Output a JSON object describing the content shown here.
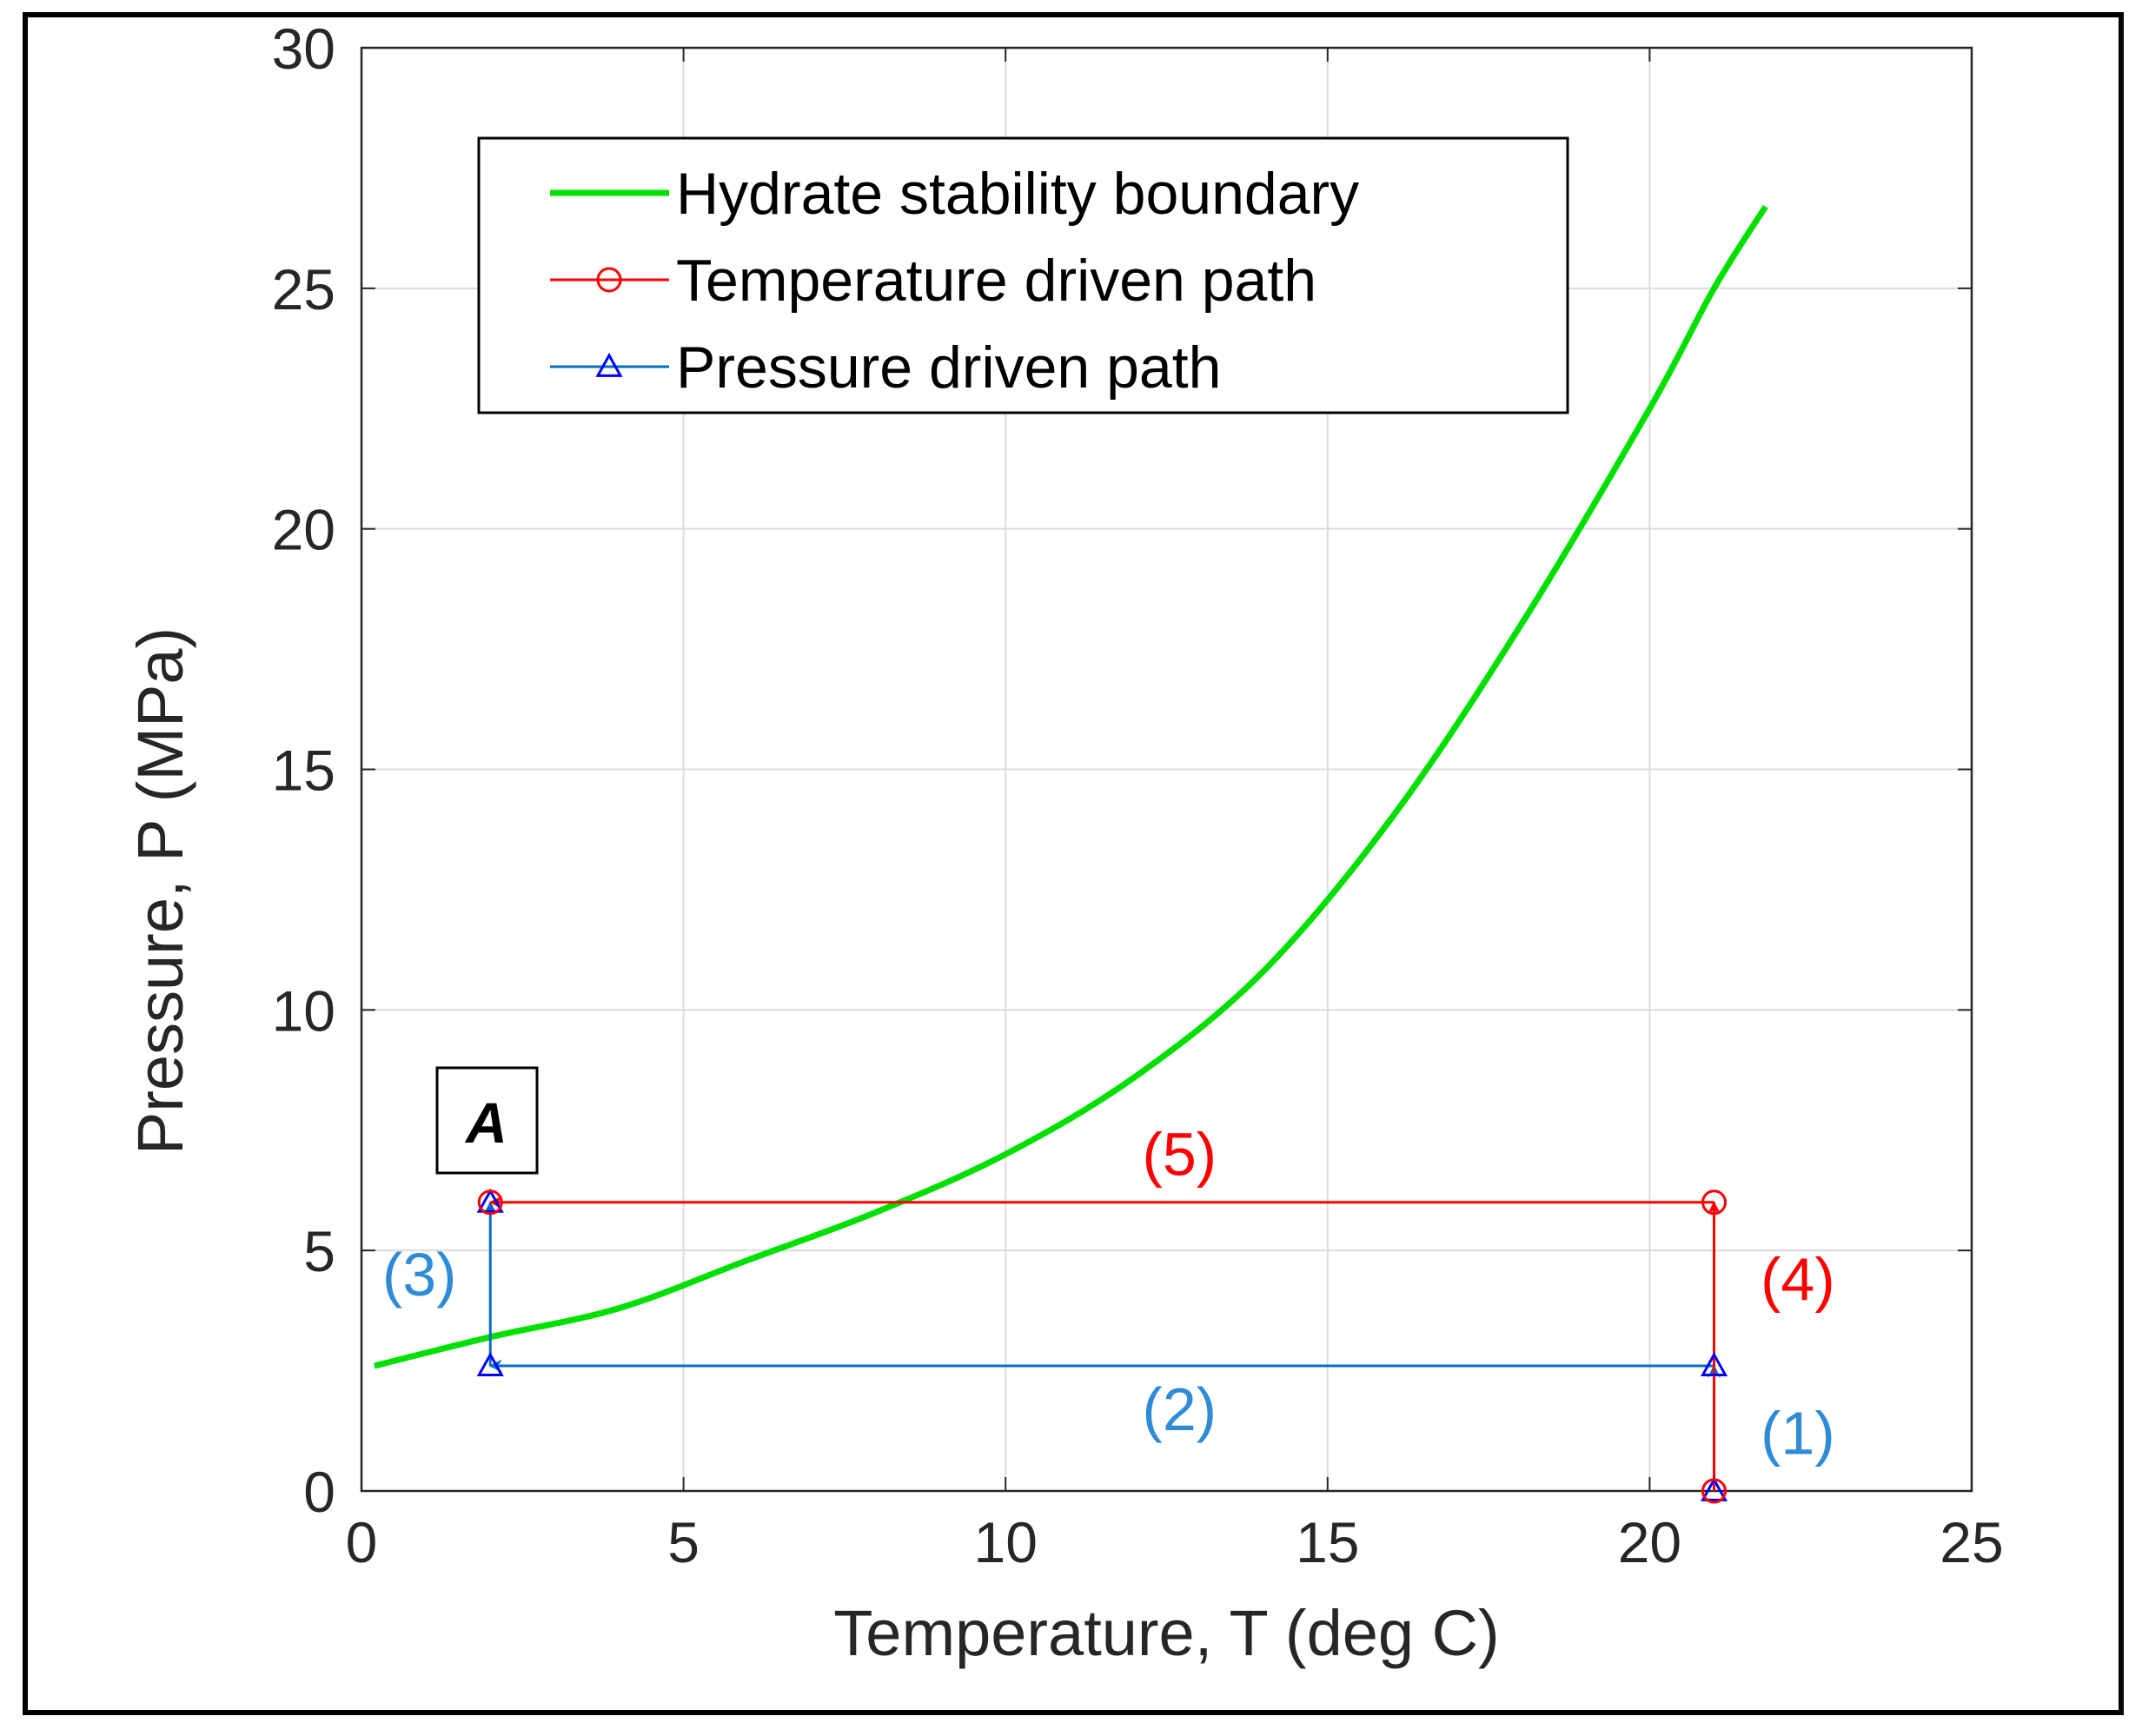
{
  "chart_data": {
    "type": "line",
    "xlabel": "Temperature, T (deg C)",
    "ylabel": "Pressure, P (MPa)",
    "xlim": [
      0,
      25
    ],
    "ylim": [
      0,
      30
    ],
    "xticks": [
      "0",
      "5",
      "10",
      "15",
      "20",
      "25"
    ],
    "yticks": [
      "0",
      "5",
      "10",
      "15",
      "20",
      "25",
      "30"
    ],
    "grid": true,
    "legend_position": "top-left",
    "panel_label": "A",
    "series": [
      {
        "name": "Hydrate stability boundary",
        "color": "#00e000",
        "marker": "none",
        "x": [
          0.2,
          2,
          4,
          6,
          8,
          10,
          12,
          14,
          16,
          18,
          20,
          21,
          21.8
        ],
        "y": [
          2.6,
          3.2,
          3.8,
          4.8,
          5.8,
          7.0,
          8.6,
          10.8,
          14.0,
          18.0,
          22.5,
          25.0,
          26.7
        ]
      },
      {
        "name": "Temperature driven path",
        "color": "#ff0000",
        "marker": "circle",
        "x": [
          21,
          21,
          2
        ],
        "y": [
          0,
          6,
          6
        ]
      },
      {
        "name": "Pressure driven path",
        "color": "#0070c0",
        "marker_color": "#0000ff",
        "marker": "triangle",
        "x": [
          21,
          21,
          2,
          2
        ],
        "y": [
          0,
          2.6,
          2.6,
          6
        ]
      }
    ],
    "annotations": [
      {
        "text": "(1)",
        "x": 22.3,
        "y": 1.2,
        "color": "#2e8bd6"
      },
      {
        "text": "(2)",
        "x": 12.7,
        "y": 1.7,
        "color": "#2e8bd6"
      },
      {
        "text": "(3)",
        "x": 0.9,
        "y": 4.5,
        "color": "#2e8bd6"
      },
      {
        "text": "(4)",
        "x": 22.3,
        "y": 4.4,
        "color": "#ff0000"
      },
      {
        "text": "(5)",
        "x": 12.7,
        "y": 7.0,
        "color": "#ff0000"
      }
    ]
  }
}
